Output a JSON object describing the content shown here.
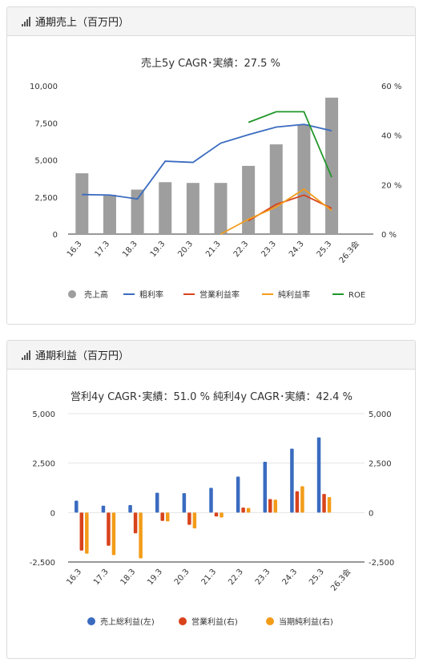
{
  "card1": {
    "header": "通期売上（百万円）",
    "chart_title": "売上5y CAGR･実績：27.5 %"
  },
  "card2": {
    "header": "通期利益（百万円）",
    "chart_title": "営利4y CAGR･実績：51.0 %  純利4y CAGR･実績：42.4 %"
  },
  "colors": {
    "sales": "#9e9e9e",
    "gross_margin": "#3a6bc0",
    "op_margin": "#d8431c",
    "net_margin": "#f39c1a",
    "roe": "#20972a",
    "gross_profit": "#3a6bc0",
    "op_profit": "#d8431c",
    "net_profit": "#f39c1a"
  },
  "chart_data": [
    {
      "type": "bar",
      "categories": [
        "16.3",
        "17.3",
        "18.3",
        "19.3",
        "20.3",
        "21.3",
        "22.3",
        "23.3",
        "24.3",
        "25.3",
        "26.3会"
      ],
      "y_left_ticks": [
        "10,000",
        "7,500",
        "5,000",
        "2,500",
        "0"
      ],
      "y_right_ticks": [
        "60 %",
        "40 %",
        "20 %",
        "0 %"
      ],
      "ylim_left": [
        0,
        10000
      ],
      "ylim_right": [
        0,
        60
      ],
      "bars": {
        "name": "売上高",
        "values": [
          4100,
          2650,
          3000,
          3500,
          3450,
          3450,
          4600,
          6050,
          7400,
          9200,
          null
        ]
      },
      "lines": [
        {
          "name": "粗利率",
          "values": [
            16,
            15.8,
            14.2,
            29.5,
            29,
            36.8,
            40.2,
            43.3,
            44.4,
            41.8,
            null
          ]
        },
        {
          "name": "営業利益率",
          "values": [
            null,
            null,
            null,
            null,
            null,
            null,
            5.4,
            12,
            15.8,
            10.4,
            null
          ]
        },
        {
          "name": "純利益率",
          "values": [
            null,
            null,
            null,
            null,
            null,
            -1,
            6,
            11,
            18.2,
            9.5,
            null
          ]
        },
        {
          "name": "ROE",
          "values": [
            null,
            null,
            null,
            null,
            null,
            null,
            45.2,
            49.5,
            49.5,
            23,
            null
          ]
        }
      ],
      "legend": [
        "売上高",
        "粗利率",
        "営業利益率",
        "純利益率",
        "ROE"
      ]
    },
    {
      "type": "bar",
      "categories": [
        "16.3",
        "17.3",
        "18.3",
        "19.3",
        "20.3",
        "21.3",
        "22.3",
        "23.3",
        "24.3",
        "25.3",
        "26.3会"
      ],
      "y_left_ticks": [
        "5,000",
        "2,500",
        "0",
        "-2,500"
      ],
      "y_right_ticks": [
        "5,000",
        "2,500",
        "0",
        "-2,500"
      ],
      "ylim": [
        -2500,
        5000
      ],
      "series": [
        {
          "name": "売上総利益(左)",
          "values": [
            600,
            350,
            380,
            1000,
            980,
            1250,
            1820,
            2570,
            3230,
            3800,
            null
          ]
        },
        {
          "name": "営業利益(右)",
          "values": [
            -1920,
            -1680,
            -1050,
            -420,
            -620,
            -200,
            250,
            680,
            1080,
            940,
            null
          ]
        },
        {
          "name": "当期純利益(右)",
          "values": [
            -2080,
            -2150,
            -2320,
            -450,
            -800,
            -250,
            230,
            650,
            1330,
            780,
            null
          ]
        }
      ],
      "legend": [
        "売上総利益(左)",
        "営業利益(右)",
        "当期純利益(右)"
      ]
    }
  ]
}
